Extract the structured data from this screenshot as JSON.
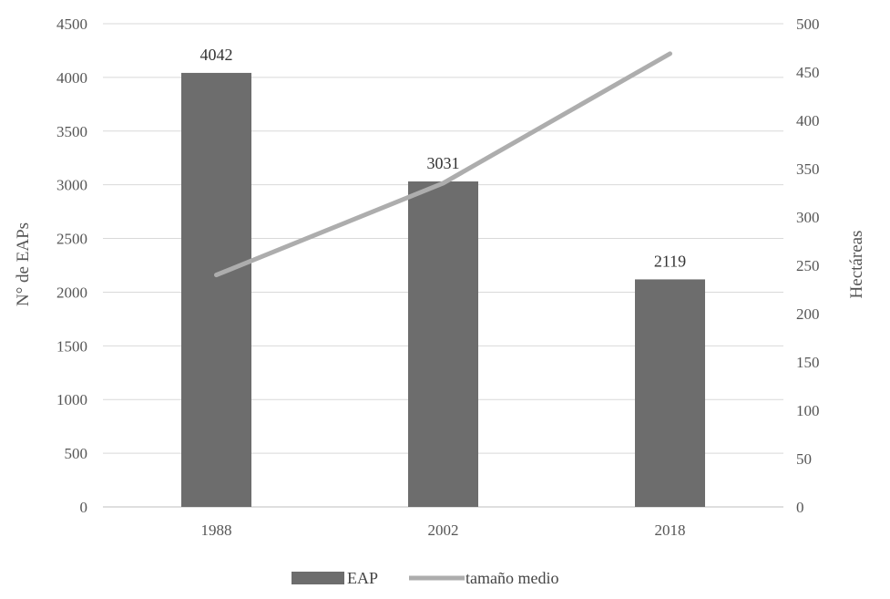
{
  "chart_data": {
    "type": "bar",
    "categories": [
      "1988",
      "2002",
      "2018"
    ],
    "series": [
      {
        "name": "EAP",
        "type": "bar",
        "axis": "left",
        "values": [
          4042,
          3031,
          2119
        ],
        "data_labels": [
          "4042",
          "3031",
          "2119"
        ],
        "color": "#6d6d6d"
      },
      {
        "name": "tamaño medio",
        "type": "line",
        "axis": "right",
        "values": [
          240,
          335,
          469
        ],
        "color": "#adadad"
      }
    ],
    "ylabel": "N° de EAPs",
    "y2label": "Hectáreas",
    "ylim": [
      0,
      4500
    ],
    "y2lim": [
      0,
      500
    ],
    "yticks": [
      "0",
      "500",
      "1000",
      "1500",
      "2000",
      "2500",
      "3000",
      "3500",
      "4000",
      "4500"
    ],
    "y2ticks": [
      "0",
      "50",
      "100",
      "150",
      "200",
      "250",
      "300",
      "350",
      "400",
      "450",
      "500"
    ],
    "grid": true,
    "legend_position": "bottom"
  }
}
